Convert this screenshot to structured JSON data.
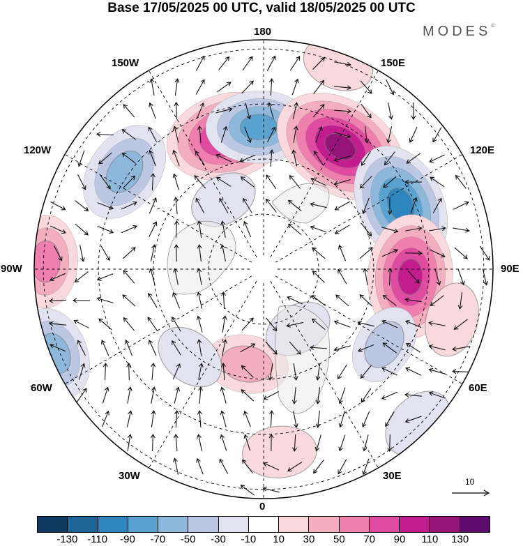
{
  "title": "Base 17/05/2025 00 UTC, valid 18/05/2025 00 UTC",
  "brand": "MODES",
  "brand_mark": "©",
  "longitude_labels": {
    "top": "180",
    "bottom": "0",
    "left": "90W",
    "right": "90E",
    "upper_left_1": "150W",
    "upper_left_2": "120W",
    "upper_right_1": "150E",
    "upper_right_2": "120E",
    "lower_left_1": "60W",
    "lower_left_2": "30W",
    "lower_right_1": "60E",
    "lower_right_2": "30E"
  },
  "reference_vector": {
    "label": "10"
  },
  "colorbar": {
    "colors": [
      "#0d3a5e",
      "#1a6496",
      "#2f86be",
      "#5aa3d1",
      "#8eb8db",
      "#bcc7e4",
      "#e2e2f0",
      "#ffffff",
      "#f9d9dc",
      "#f3afbf",
      "#ee7fae",
      "#de4ba0",
      "#c31c8f",
      "#951278",
      "#5e0b6e"
    ],
    "ticks": [
      "-130",
      "-110",
      "-90",
      "-70",
      "-50",
      "-30",
      "-10",
      "10",
      "30",
      "50",
      "70",
      "90",
      "110",
      "130"
    ]
  },
  "anomaly_centers": [
    {
      "lon": -165,
      "r": 0.6,
      "value": 110
    },
    {
      "lon": -178,
      "r": 0.62,
      "value": -80
    },
    {
      "lon": 148,
      "r": 0.63,
      "value": 130
    },
    {
      "lon": 115,
      "r": 0.66,
      "value": -110
    },
    {
      "lon": 87,
      "r": 0.64,
      "value": 110
    },
    {
      "lon": -125,
      "r": 0.74,
      "value": -75
    },
    {
      "lon": -92,
      "r": 0.95,
      "value": 60
    },
    {
      "lon": -68,
      "r": 0.98,
      "value": -60
    },
    {
      "lon": 58,
      "r": 0.62,
      "value": -40
    },
    {
      "lon": -10,
      "r": 0.42,
      "value": 45
    },
    {
      "lon": -40,
      "r": 0.5,
      "value": -25
    },
    {
      "lon": 30,
      "r": 0.3,
      "value": -20
    },
    {
      "lon": 5,
      "r": 0.8,
      "value": 30
    },
    {
      "lon": 45,
      "r": 0.95,
      "value": -30
    },
    {
      "lon": 75,
      "r": 0.85,
      "value": 30
    },
    {
      "lon": -150,
      "r": 0.35,
      "value": -20
    },
    {
      "lon": 160,
      "r": 0.95,
      "value": 25
    }
  ]
}
